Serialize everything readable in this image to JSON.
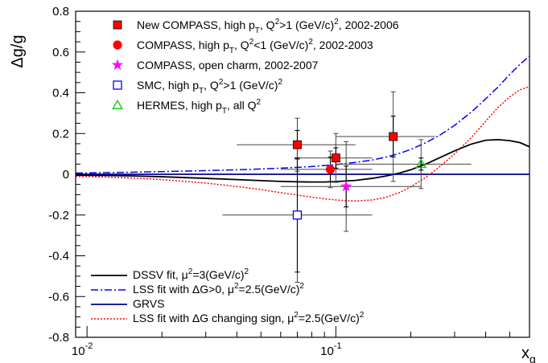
{
  "chart_data": {
    "type": "scatter",
    "title": "",
    "xlabel": "x_g",
    "ylabel": "Δg/g",
    "x_scale": "log",
    "xlim": [
      0.009,
      0.6
    ],
    "ylim": [
      -0.8,
      0.8
    ],
    "x_ticks": [
      {
        "value": 0.01,
        "label_base": "10",
        "label_exp": "-2"
      },
      {
        "value": 0.1,
        "label_base": "10",
        "label_exp": "-1"
      }
    ],
    "y_ticks": [
      {
        "value": 0.8,
        "label": "0.8"
      },
      {
        "value": 0.6,
        "label": "0.6"
      },
      {
        "value": 0.4,
        "label": "0.4"
      },
      {
        "value": 0.2,
        "label": "0.2"
      },
      {
        "value": 0,
        "label": "0"
      },
      {
        "value": -0.2,
        "label": "-0.2"
      },
      {
        "value": -0.4,
        "label": "-0.4"
      },
      {
        "value": -0.6,
        "label": "-0.6"
      },
      {
        "value": -0.8,
        "label": "-0.8"
      }
    ],
    "points": [
      {
        "series": "New COMPASS high pT Q2>1",
        "marker": "filled-square",
        "color": "#ff0000",
        "x": 0.07,
        "y": 0.145,
        "xlo": 0.04,
        "xhi": 0.12,
        "stat_lo": 0.07,
        "stat_hi": 0.07,
        "syst_lo": 0.13,
        "syst_hi": 0.13
      },
      {
        "series": "New COMPASS high pT Q2>1",
        "marker": "filled-square",
        "color": "#ff0000",
        "x": 0.1,
        "y": 0.08,
        "xlo": 0.068,
        "xhi": 0.14,
        "stat_lo": 0.05,
        "stat_hi": 0.05,
        "syst_lo": 0.12,
        "syst_hi": 0.12
      },
      {
        "series": "New COMPASS high pT Q2>1",
        "marker": "filled-square",
        "color": "#ff0000",
        "x": 0.17,
        "y": 0.185,
        "xlo": 0.1,
        "xhi": 0.25,
        "stat_lo": 0.1,
        "stat_hi": 0.1,
        "syst_lo": 0.22,
        "syst_hi": 0.22
      },
      {
        "series": "COMPASS high pT Q2<1",
        "marker": "filled-circle",
        "color": "#ff0000",
        "x": 0.095,
        "y": 0.024,
        "xlo": 0.06,
        "xhi": 0.14,
        "stat_lo": 0.06,
        "stat_hi": 0.06,
        "syst_lo": 0.09,
        "syst_hi": 0.09
      },
      {
        "series": "COMPASS open charm",
        "marker": "star",
        "color": "#ff00ff",
        "x": 0.11,
        "y": -0.06,
        "xlo": 0.06,
        "xhi": 0.22,
        "stat_lo": 0.1,
        "stat_hi": 0.1,
        "syst_lo": 0.22,
        "syst_hi": 0.22
      },
      {
        "series": "SMC high pT Q2>1",
        "marker": "open-square",
        "color": "#0000ff",
        "x": 0.07,
        "y": -0.2,
        "xlo": 0.035,
        "xhi": 0.14,
        "stat_lo": 0.28,
        "stat_hi": 0.28,
        "syst_lo": 0.33,
        "syst_hi": 0.33
      },
      {
        "series": "HERMES high pT all Q2",
        "marker": "open-triangle",
        "color": "#00cc00",
        "x": 0.22,
        "y": 0.05,
        "xlo": 0.1,
        "xhi": 0.35,
        "stat_lo": 0.03,
        "stat_hi": 0.03,
        "syst_lo": 0.12,
        "syst_hi": 0.12
      }
    ],
    "curves": [
      {
        "name": "DSSV",
        "style": "solid",
        "color": "#000000",
        "x": [
          0.009,
          0.012,
          0.015,
          0.02,
          0.03,
          0.04,
          0.05,
          0.06,
          0.07,
          0.08,
          0.09,
          0.1,
          0.12,
          0.14,
          0.16,
          0.18,
          0.2,
          0.23,
          0.26,
          0.3,
          0.35,
          0.4,
          0.45,
          0.5,
          0.55,
          0.6
        ],
        "y": [
          -0.005,
          -0.006,
          -0.008,
          -0.012,
          -0.02,
          -0.026,
          -0.031,
          -0.035,
          -0.037,
          -0.038,
          -0.038,
          -0.036,
          -0.03,
          -0.02,
          -0.008,
          0.006,
          0.022,
          0.05,
          0.08,
          0.115,
          0.148,
          0.167,
          0.17,
          0.165,
          0.155,
          0.135
        ]
      },
      {
        "name": "LSS positive",
        "style": "dashdot",
        "color": "#0000ff",
        "x": [
          0.009,
          0.012,
          0.015,
          0.02,
          0.03,
          0.04,
          0.05,
          0.06,
          0.07,
          0.08,
          0.09,
          0.1,
          0.12,
          0.14,
          0.16,
          0.18,
          0.2,
          0.23,
          0.26,
          0.3,
          0.35,
          0.4,
          0.45,
          0.5,
          0.55,
          0.6
        ],
        "y": [
          0.006,
          0.008,
          0.01,
          0.013,
          0.018,
          0.022,
          0.026,
          0.03,
          0.034,
          0.038,
          0.043,
          0.048,
          0.058,
          0.07,
          0.085,
          0.102,
          0.122,
          0.155,
          0.19,
          0.24,
          0.305,
          0.37,
          0.43,
          0.49,
          0.54,
          0.58
        ]
      },
      {
        "name": "GRVS",
        "style": "solid",
        "color": "#00008b",
        "x": [
          0.009,
          0.6
        ],
        "y": [
          0,
          0
        ]
      },
      {
        "name": "LSS sign change",
        "style": "dotted",
        "color": "#ff0000",
        "x": [
          0.009,
          0.012,
          0.015,
          0.02,
          0.03,
          0.04,
          0.05,
          0.06,
          0.07,
          0.08,
          0.09,
          0.1,
          0.11,
          0.12,
          0.14,
          0.16,
          0.18,
          0.2,
          0.23,
          0.26,
          0.3,
          0.35,
          0.4,
          0.45,
          0.5,
          0.55,
          0.6
        ],
        "y": [
          -0.01,
          -0.014,
          -0.018,
          -0.026,
          -0.043,
          -0.06,
          -0.075,
          -0.09,
          -0.102,
          -0.112,
          -0.12,
          -0.126,
          -0.13,
          -0.131,
          -0.126,
          -0.112,
          -0.09,
          -0.062,
          -0.015,
          0.035,
          0.1,
          0.18,
          0.26,
          0.33,
          0.38,
          0.415,
          0.43
        ]
      }
    ],
    "legend_top": [
      {
        "marker": "filled-square",
        "color": "#ff0000",
        "parts": [
          {
            "t": "New COMPASS, high p"
          },
          {
            "t": "T",
            "s": "sub"
          },
          {
            "t": ", Q"
          },
          {
            "t": "2",
            "s": "sup"
          },
          {
            "t": ">1 (GeV/c)"
          },
          {
            "t": "2",
            "s": "sup"
          },
          {
            "t": ", 2002-2006"
          }
        ]
      },
      {
        "marker": "filled-circle",
        "color": "#ff0000",
        "parts": [
          {
            "t": "COMPASS, high p"
          },
          {
            "t": "T",
            "s": "sub"
          },
          {
            "t": ", Q"
          },
          {
            "t": "2",
            "s": "sup"
          },
          {
            "t": "<1 (GeV/c)"
          },
          {
            "t": "2",
            "s": "sup"
          },
          {
            "t": ", 2002-2003"
          }
        ]
      },
      {
        "marker": "star",
        "color": "#ff00ff",
        "parts": [
          {
            "t": "COMPASS, open charm, 2002-2007"
          }
        ]
      },
      {
        "marker": "open-square",
        "color": "#0000ff",
        "parts": [
          {
            "t": "SMC, high p"
          },
          {
            "t": "T",
            "s": "sub"
          },
          {
            "t": ", Q"
          },
          {
            "t": "2",
            "s": "sup"
          },
          {
            "t": ">1 (GeV/c)"
          },
          {
            "t": "2",
            "s": "sup"
          }
        ]
      },
      {
        "marker": "open-triangle",
        "color": "#00cc00",
        "parts": [
          {
            "t": "HERMES, high p"
          },
          {
            "t": "T",
            "s": "sub"
          },
          {
            "t": ", all Q"
          },
          {
            "t": "2",
            "s": "sup"
          }
        ]
      }
    ],
    "legend_bottom": [
      {
        "style": "solid",
        "color": "#000000",
        "parts": [
          {
            "t": "DSSV fit, μ"
          },
          {
            "t": "2",
            "s": "sup"
          },
          {
            "t": "=3(GeV/c)"
          },
          {
            "t": "2",
            "s": "sup"
          }
        ]
      },
      {
        "style": "dashdot",
        "color": "#0000ff",
        "parts": [
          {
            "t": "LSS fit with ΔG>0, μ"
          },
          {
            "t": "2",
            "s": "sup"
          },
          {
            "t": "=2.5(GeV/c)"
          },
          {
            "t": "2",
            "s": "sup"
          }
        ]
      },
      {
        "style": "solid",
        "color": "#00008b",
        "parts": [
          {
            "t": "GRVS"
          }
        ]
      },
      {
        "style": "dotted",
        "color": "#ff0000",
        "parts": [
          {
            "t": "LSS fit with ΔG changing sign, μ"
          },
          {
            "t": "2",
            "s": "sup"
          },
          {
            "t": "=2.5(GeV/c)"
          },
          {
            "t": "2",
            "s": "sup"
          }
        ]
      }
    ],
    "grid": false,
    "legend_position": "top-left and bottom-left"
  }
}
